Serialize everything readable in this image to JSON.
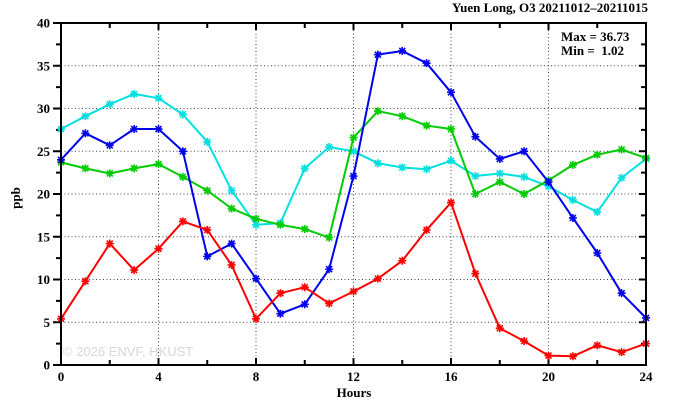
{
  "chart_data": {
    "type": "line",
    "title": "Yuen Long, O3 20211012–20211015",
    "xlabel": "Hours",
    "ylabel": "ppb",
    "xlim": [
      0,
      24
    ],
    "ylim": [
      0,
      40
    ],
    "x_major_ticks": [
      0,
      4,
      8,
      12,
      16,
      20,
      24
    ],
    "x_minor_ticks": [
      2,
      6,
      10,
      14,
      18,
      22
    ],
    "y_major_ticks": [
      0,
      5,
      10,
      15,
      20,
      25,
      30,
      35,
      40
    ],
    "y_minor_ticks": [
      2.5,
      7.5,
      12.5,
      17.5,
      22.5,
      27.5,
      32.5,
      37.5
    ],
    "grid": "dotted, at major ticks only (5-35 horizontal, 4-20 vertical)",
    "legend": "none",
    "annotation": {
      "max_label": "Max = 36.73",
      "min_label": "Min =  1.02"
    },
    "watermark": "© 2026 ENVF, HKUST",
    "x": [
      0,
      1,
      2,
      3,
      4,
      5,
      6,
      7,
      8,
      9,
      10,
      11,
      12,
      13,
      14,
      15,
      16,
      17,
      18,
      19,
      20,
      21,
      22,
      23,
      24
    ],
    "series": [
      {
        "name": "series-cyan",
        "color": "#00e0e0",
        "values": [
          27.6,
          29.1,
          30.5,
          31.7,
          31.2,
          29.3,
          26.1,
          20.4,
          16.4,
          16.6,
          23.0,
          25.5,
          25.0,
          23.6,
          23.1,
          22.9,
          23.9,
          22.1,
          22.4,
          22.0,
          20.9,
          19.3,
          17.9,
          21.9,
          24.1
        ]
      },
      {
        "name": "series-green",
        "color": "#00cc00",
        "values": [
          23.7,
          23.0,
          22.4,
          23.0,
          23.5,
          22.0,
          20.4,
          18.3,
          17.1,
          16.4,
          15.9,
          14.9,
          26.6,
          29.7,
          29.1,
          28.0,
          27.6,
          20.0,
          21.4,
          20.0,
          21.6,
          23.4,
          24.6,
          25.2,
          24.2
        ]
      },
      {
        "name": "series-blue",
        "color": "#0000ee",
        "values": [
          24.0,
          27.1,
          25.7,
          27.6,
          27.6,
          25.0,
          12.7,
          14.2,
          10.1,
          6.0,
          7.1,
          11.2,
          22.1,
          36.3,
          36.73,
          35.3,
          31.9,
          26.7,
          24.1,
          25.0,
          21.4,
          17.2,
          13.1,
          8.4,
          5.5
        ]
      },
      {
        "name": "series-red",
        "color": "#ff0000",
        "values": [
          5.4,
          9.8,
          14.2,
          11.1,
          13.6,
          16.8,
          15.8,
          11.7,
          5.4,
          8.4,
          9.1,
          7.2,
          8.6,
          10.1,
          12.2,
          15.8,
          19.0,
          10.7,
          4.3,
          2.8,
          1.1,
          1.02,
          2.3,
          1.5,
          2.5
        ]
      }
    ]
  }
}
